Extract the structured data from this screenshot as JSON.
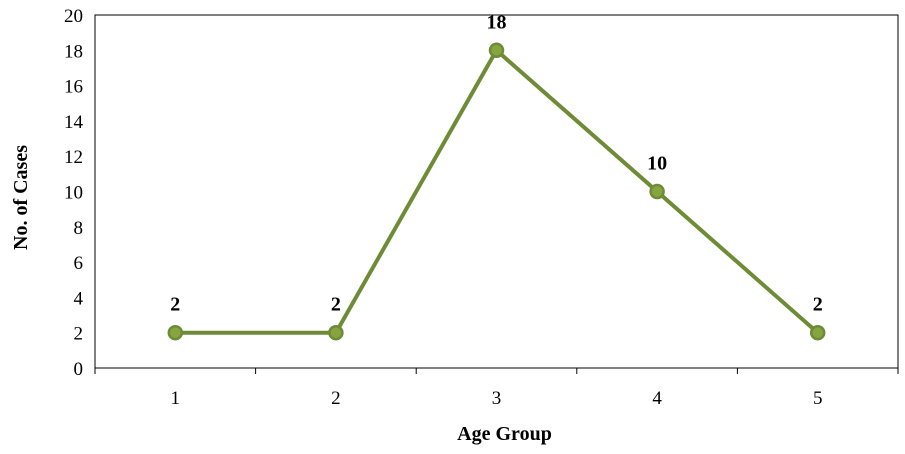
{
  "chart_data": {
    "type": "line",
    "title": "",
    "xlabel": "Age Group",
    "ylabel": "No. of Cases",
    "categories": [
      "1",
      "2",
      "3",
      "4",
      "5"
    ],
    "y_ticks": [
      "0",
      "2",
      "4",
      "6",
      "8",
      "10",
      "12",
      "14",
      "16",
      "18",
      "20"
    ],
    "ylim": [
      0,
      20
    ],
    "grid": false,
    "legend": "none",
    "series": [
      {
        "values": [
          2,
          2,
          18,
          10,
          2
        ],
        "data_labels": [
          "2",
          "2",
          "18",
          "10",
          "2"
        ],
        "color": "#6e8b36",
        "marker_fill": "#86a43f"
      }
    ]
  }
}
